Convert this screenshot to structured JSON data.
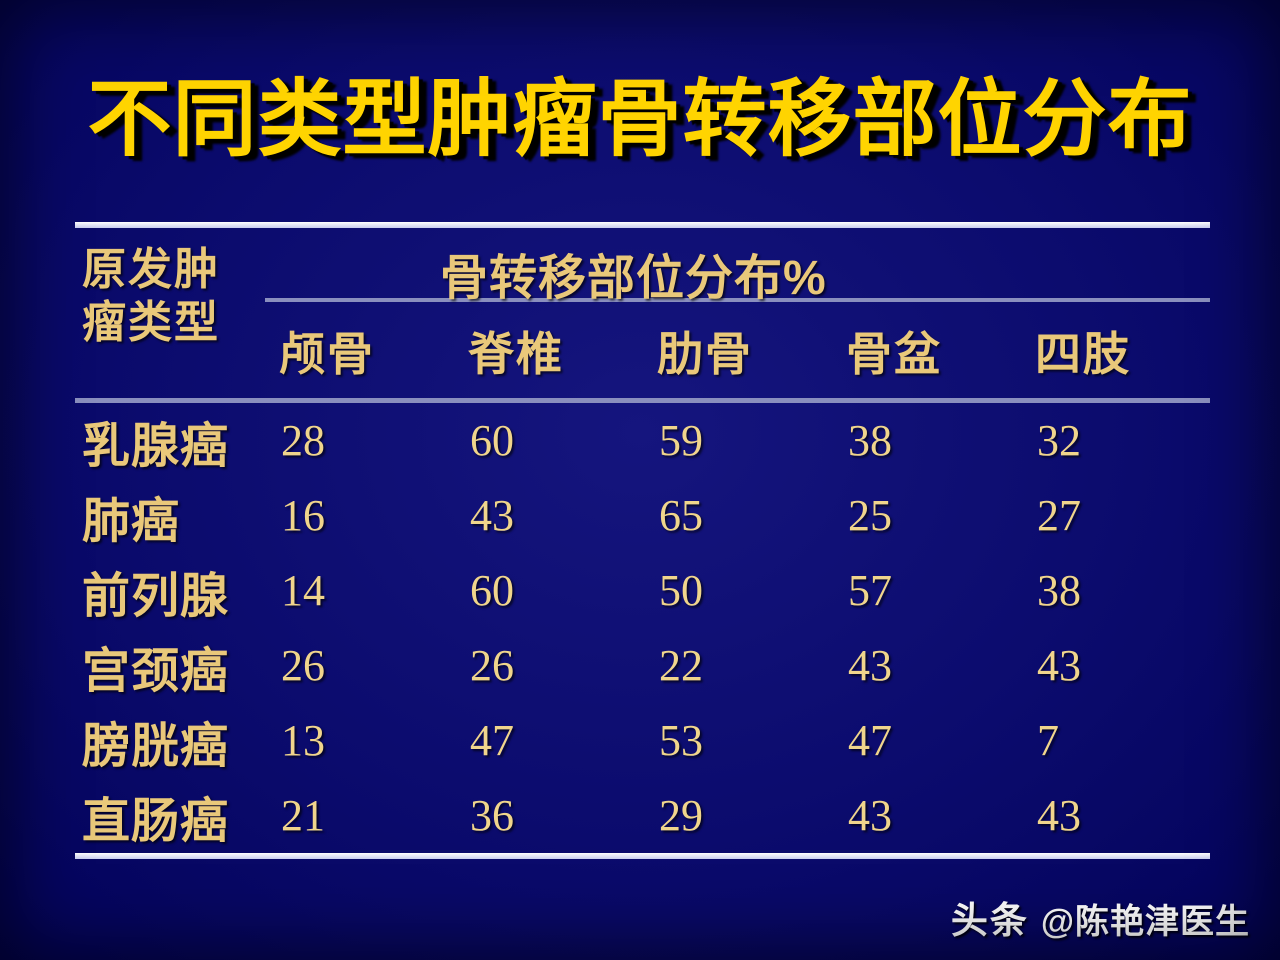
{
  "chart_data": {
    "type": "table",
    "title": "不同类型肿瘤骨转移部位分布",
    "row_header": "原发肿瘤类型",
    "group_header": "骨转移部位分布%",
    "columns": [
      "颅骨",
      "脊椎",
      "肋骨",
      "骨盆",
      "四肢"
    ],
    "rows": [
      {
        "label": "乳腺癌",
        "values": [
          28,
          60,
          59,
          38,
          32
        ]
      },
      {
        "label": "肺癌",
        "values": [
          16,
          43,
          65,
          25,
          27
        ]
      },
      {
        "label": "前列腺",
        "values": [
          14,
          60,
          50,
          57,
          38
        ]
      },
      {
        "label": "宫颈癌",
        "values": [
          26,
          26,
          22,
          43,
          43
        ]
      },
      {
        "label": "膀胱癌",
        "values": [
          13,
          47,
          53,
          47,
          7
        ]
      },
      {
        "label": "直肠癌",
        "values": [
          21,
          36,
          29,
          43,
          43
        ]
      }
    ],
    "units": "%"
  },
  "watermark": {
    "brand": "头条",
    "handle": "@陈艳津医生"
  },
  "colors": {
    "background": "#0b0b6d",
    "title_yellow": "#ffd400",
    "table_gold": "#e9c87a",
    "number_gold": "#f0d58c",
    "rule_white": "#ffffff",
    "rule_blue": "#8a8fbe",
    "watermark_white": "#ffffff"
  }
}
